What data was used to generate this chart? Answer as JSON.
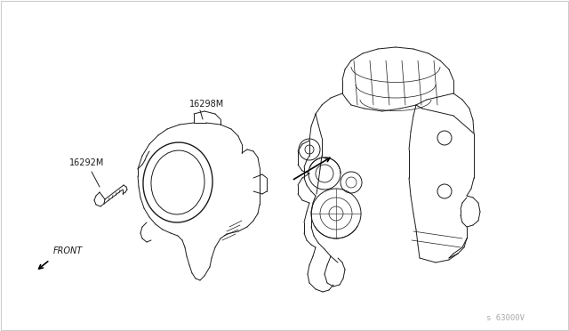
{
  "background_color": "#ffffff",
  "border_color": "#cccccc",
  "line_color": "#1a1a1a",
  "label_16298M": "16298M",
  "label_16292M": "16292M",
  "label_front": "FRONT",
  "watermark": "s 63000V",
  "fig_width": 6.4,
  "fig_height": 3.72,
  "dpi": 100
}
